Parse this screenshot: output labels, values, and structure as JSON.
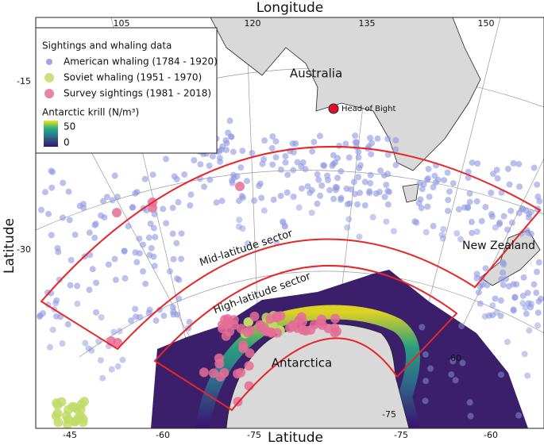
{
  "axes": {
    "top_title": "Longitude",
    "left_title": "Latitude",
    "bottom_title": "Latitude",
    "top_ticks": [
      "105",
      "120",
      "135",
      "150"
    ],
    "left_ticks": [
      "-15",
      "-30"
    ],
    "bottom_ticks": [
      "-45",
      "-60",
      "-75",
      "-75",
      "-60"
    ],
    "inner_ticks": [
      "-60",
      "-75"
    ]
  },
  "legend": {
    "title": "Sightings and whaling data",
    "items": [
      {
        "label": "American whaling (1784 - 1920)",
        "color": "#8e97df"
      },
      {
        "label": "Soviet whaling (1951 - 1970)",
        "color": "#c2dc6a"
      },
      {
        "label": "Survey sightings (1981 - 2018)",
        "color": "#e56d97"
      }
    ],
    "scale_title": "Antarctic krill (N/m³)",
    "scale_max": "50",
    "scale_min": "0"
  },
  "labels": {
    "australia": "Australia",
    "head_of_bight": "Head of Bight",
    "new_zealand": "New Zealand",
    "antarctica": "Antarctica",
    "mid_sector": "Mid-latitude sector",
    "high_sector": "High-latitude sector"
  }
}
